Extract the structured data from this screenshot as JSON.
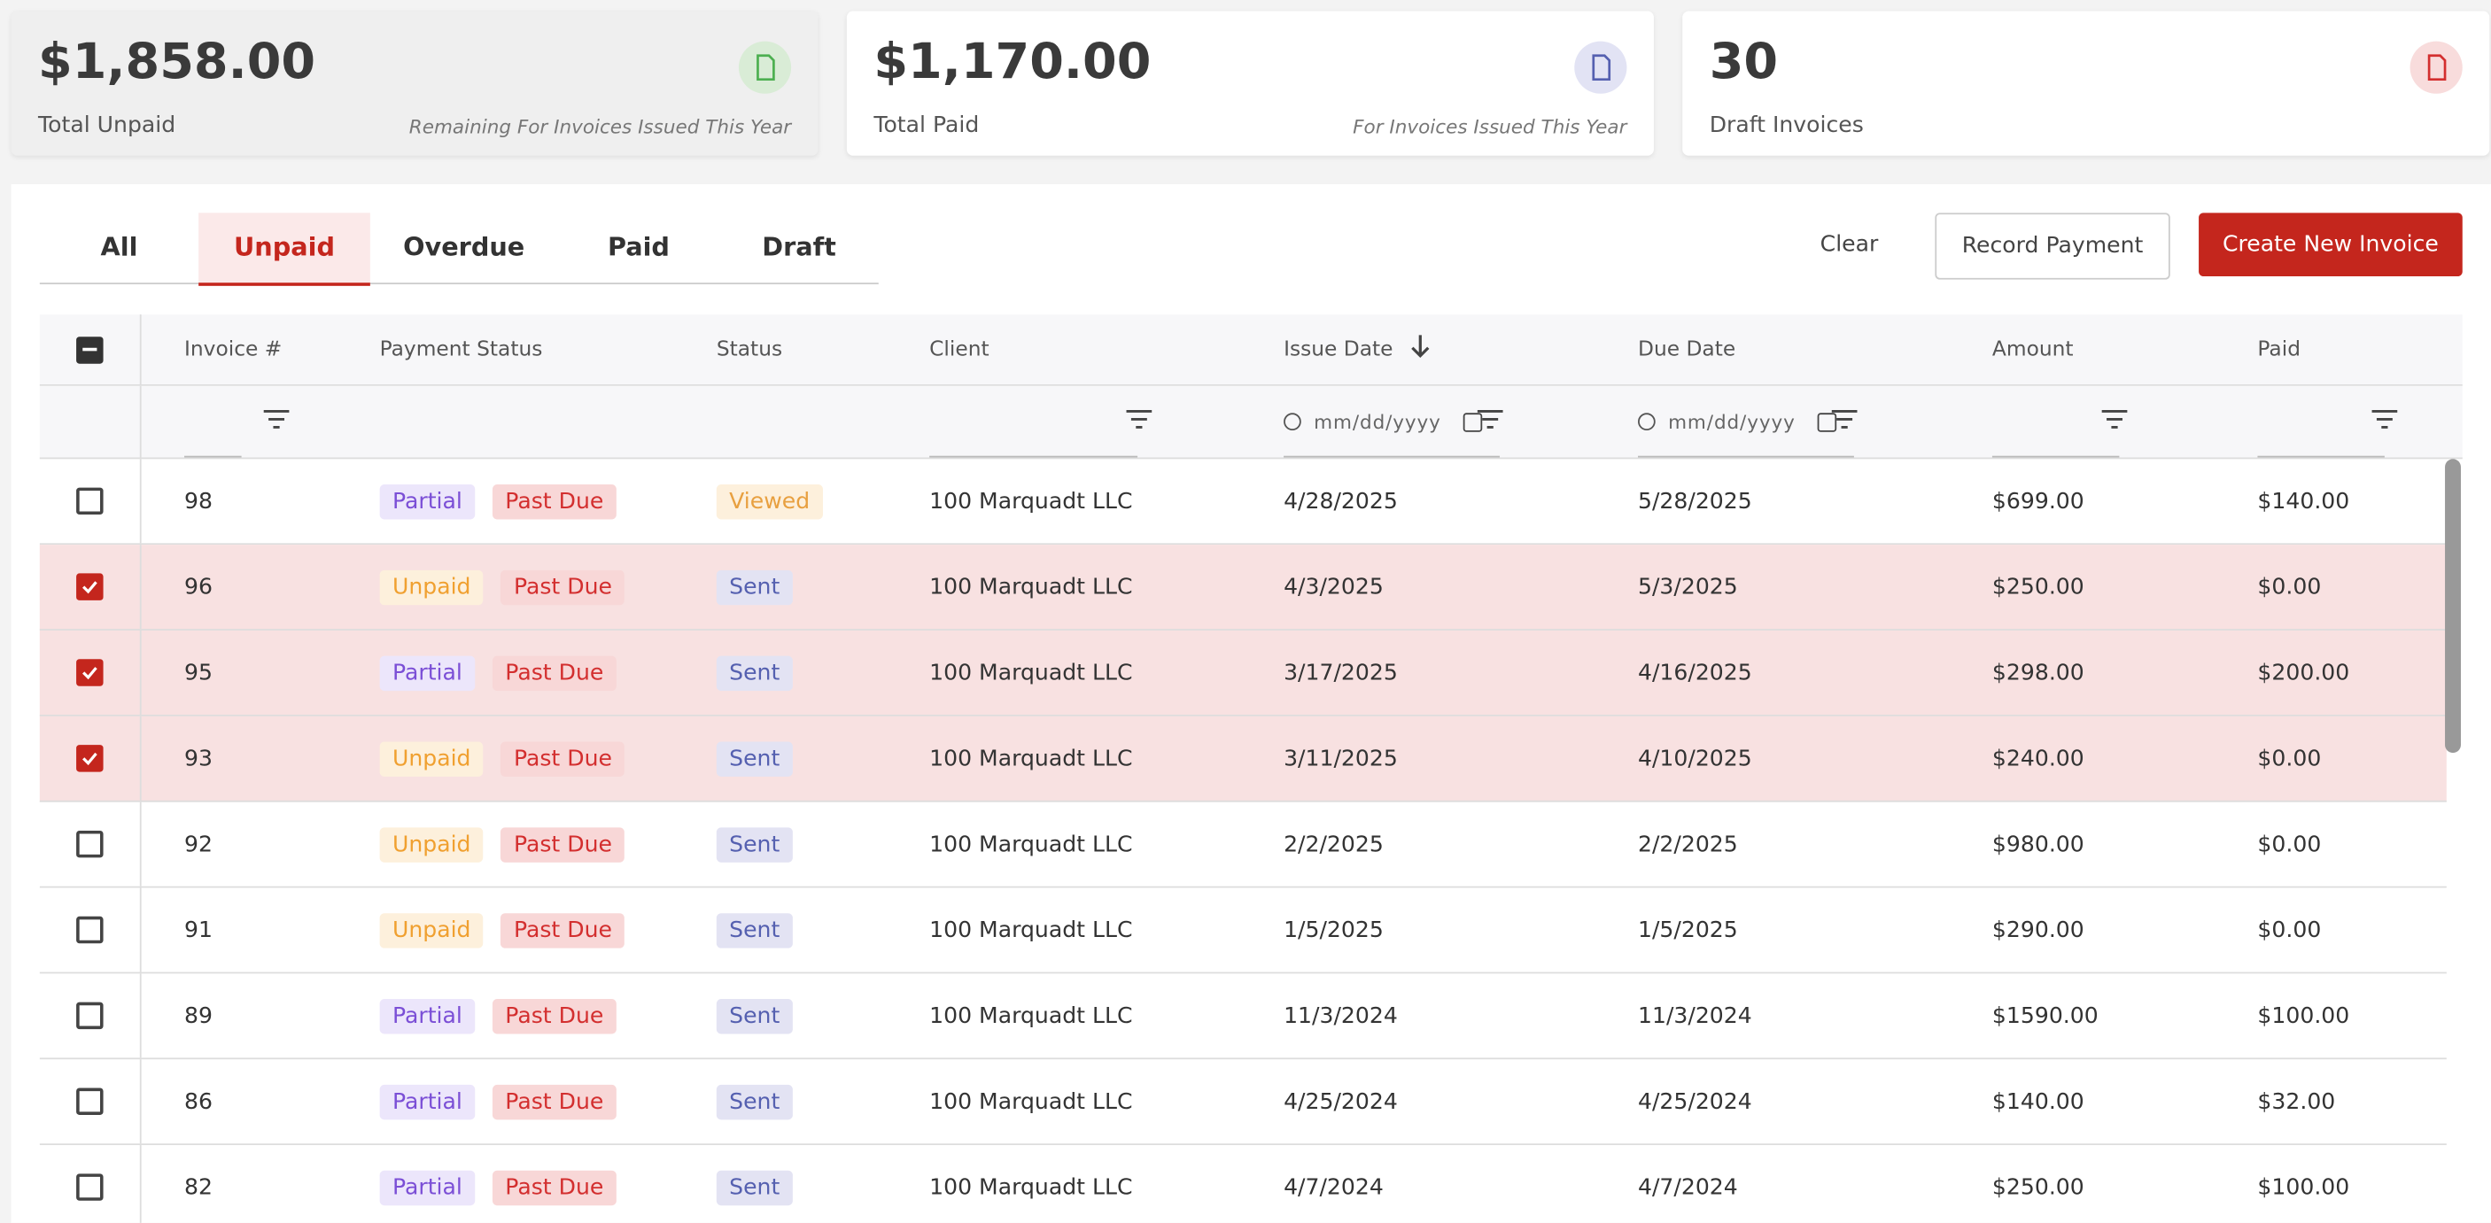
{
  "cards": [
    {
      "amount": "$1,858.00",
      "label": "Total Unpaid",
      "note": "Remaining For Invoices Issued This Year"
    },
    {
      "amount": "$1,170.00",
      "label": "Total Paid",
      "note": "For Invoices Issued This Year"
    },
    {
      "amount": "30",
      "label": "Draft Invoices"
    }
  ],
  "tabs": [
    "All",
    "Unpaid",
    "Overdue",
    "Paid",
    "Draft"
  ],
  "active_tab": 1,
  "buttons": [
    "Clear",
    "Record Payment",
    "Create New Invoice"
  ],
  "table": {
    "columns": [
      "Invoice #",
      "Payment Status",
      "Status",
      "Client",
      "Issue Date",
      "Due Date",
      "Amount",
      "Paid"
    ],
    "date_placeholder": "mm/dd/yyyy",
    "rows": [
      {
        "checked": false,
        "cells": [
          "98",
          "Partial",
          "Past Due",
          "Viewed",
          "100 Marquadt LLC",
          "4/28/2025",
          "5/28/2025",
          "$699.00",
          "$140.00"
        ]
      },
      {
        "checked": true,
        "cells": [
          "96",
          "Unpaid",
          "Past Due",
          "Sent",
          "100 Marquadt LLC",
          "4/3/2025",
          "5/3/2025",
          "$250.00",
          "$0.00"
        ]
      },
      {
        "checked": true,
        "cells": [
          "95",
          "Partial",
          "Past Due",
          "Sent",
          "100 Marquadt LLC",
          "3/17/2025",
          "4/16/2025",
          "$298.00",
          "$200.00"
        ]
      },
      {
        "checked": true,
        "cells": [
          "93",
          "Unpaid",
          "Past Due",
          "Sent",
          "100 Marquadt LLC",
          "3/11/2025",
          "4/10/2025",
          "$240.00",
          "$0.00"
        ]
      },
      {
        "checked": false,
        "cells": [
          "92",
          "Unpaid",
          "Past Due",
          "Sent",
          "100 Marquadt LLC",
          "2/2/2025",
          "2/2/2025",
          "$980.00",
          "$0.00"
        ]
      },
      {
        "checked": false,
        "cells": [
          "91",
          "Unpaid",
          "Past Due",
          "Sent",
          "100 Marquadt LLC",
          "1/5/2025",
          "1/5/2025",
          "$290.00",
          "$0.00"
        ]
      },
      {
        "checked": false,
        "cells": [
          "89",
          "Partial",
          "Past Due",
          "Sent",
          "100 Marquadt LLC",
          "11/3/2024",
          "11/3/2024",
          "$1590.00",
          "$100.00"
        ]
      },
      {
        "checked": false,
        "cells": [
          "86",
          "Partial",
          "Past Due",
          "Sent",
          "100 Marquadt LLC",
          "4/25/2024",
          "4/25/2024",
          "$140.00",
          "$32.00"
        ]
      },
      {
        "checked": false,
        "cells": [
          "82",
          "Partial",
          "Past Due",
          "Sent",
          "100 Marquadt LLC",
          "4/7/2024",
          "4/7/2024",
          "$250.00",
          "$100.00"
        ]
      }
    ]
  }
}
